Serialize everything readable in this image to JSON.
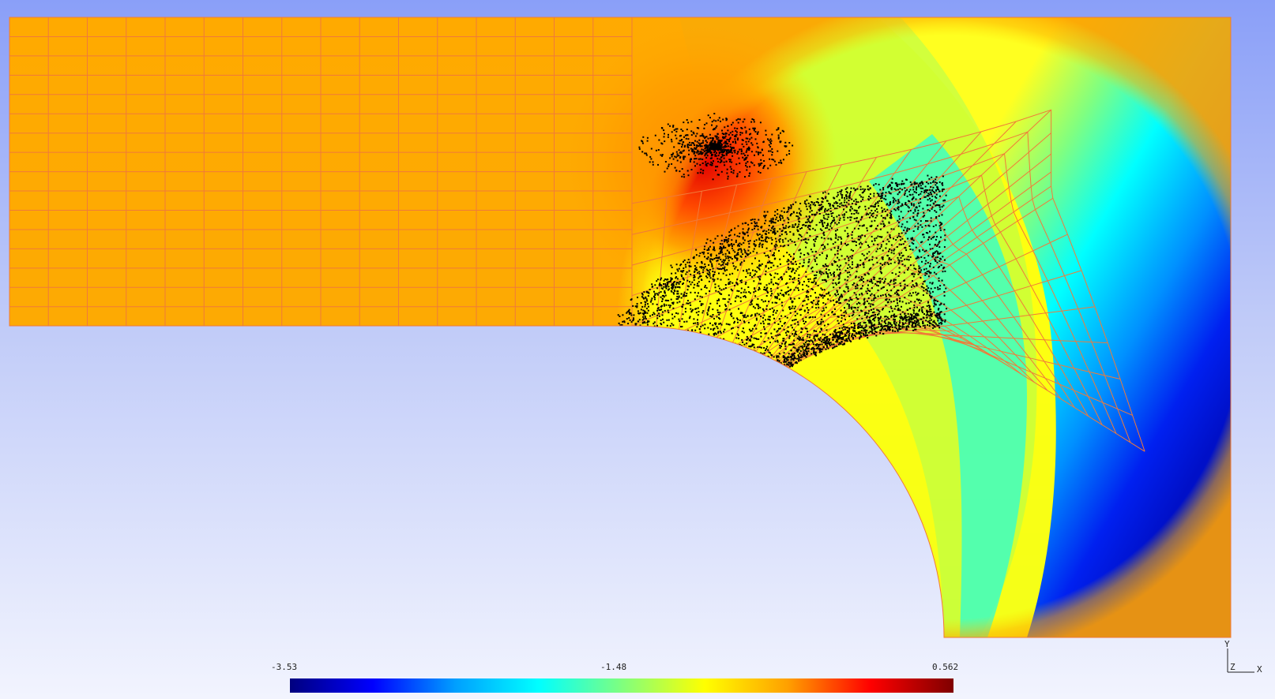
{
  "viewer": {
    "background_top": "#8a9ff8",
    "background_bottom": "#f2f4fe"
  },
  "mesh": {
    "grid_color": "#f07a3a",
    "particle_color": "#000000",
    "description_field": "scalar contour on plate with circular hole (quarter model)"
  },
  "colorbar": {
    "min_label": "-3.53",
    "mid_label": "-1.48",
    "max_label": "0.562",
    "colormap": "jet",
    "colors": [
      "#00007f",
      "#0000ff",
      "#00a0ff",
      "#00ffff",
      "#7fff7f",
      "#ffff00",
      "#ffa000",
      "#ff0000",
      "#7f0000"
    ]
  },
  "axes": {
    "y_label": "Y",
    "z_label": "Z",
    "x_label": "X"
  }
}
